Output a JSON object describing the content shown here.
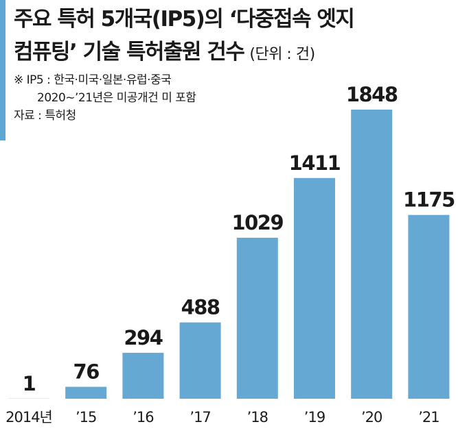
{
  "title": {
    "line1": "주요 특허 5개국(IP5)의 ‘다중접속 엣지",
    "line2": "컴퓨팅’ 기술 특허출원 건수",
    "unit": "(단위 : 건)"
  },
  "notes": {
    "line1": "※ IP5 : 한국·미국·일본·유럽·중국",
    "line2": "2020∼’21년은 미공개건 미 포함",
    "source": "자료 : 특허청"
  },
  "colors": {
    "bar": "#65a8d3",
    "accent": "#5ea6d4"
  },
  "chart_data": {
    "type": "bar",
    "categories": [
      "2014년",
      "’15",
      "’16",
      "’17",
      "’18",
      "’19",
      "’20",
      "’21"
    ],
    "values": [
      1,
      76,
      294,
      488,
      1029,
      1411,
      1848,
      1175
    ],
    "title": "주요 특허 5개국(IP5)의 ‘다중접속 엣지 컴퓨팅’ 기술 특허출원 건수",
    "xlabel": "",
    "ylabel": "",
    "ylim": [
      0,
      1848
    ],
    "grid": false,
    "legend": "none"
  }
}
